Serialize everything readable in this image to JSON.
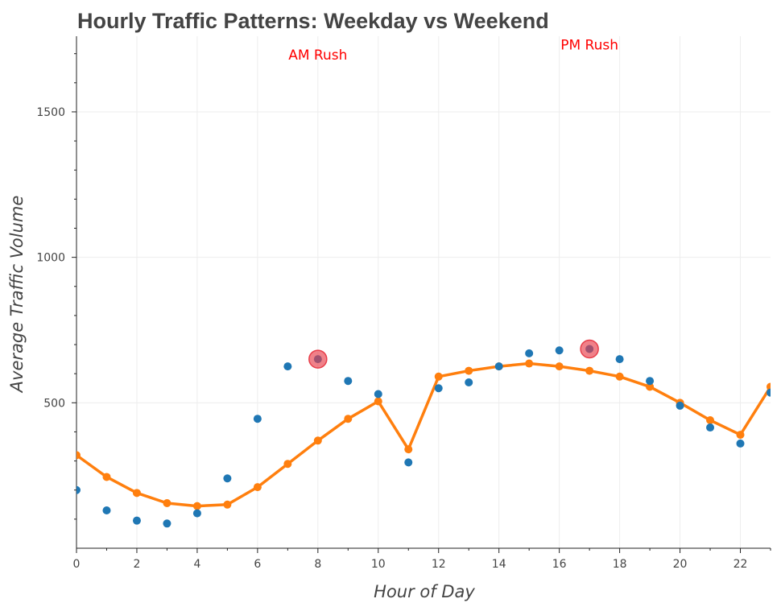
{
  "chart_data": {
    "type": "line",
    "title": "Hourly Traffic Patterns: Weekday vs Weekend",
    "xlabel": "Hour of Day",
    "ylabel": "Average Traffic Volume",
    "xlim": [
      0,
      23
    ],
    "ylim": [
      0,
      1760
    ],
    "x_ticks": [
      0,
      2,
      4,
      6,
      8,
      10,
      12,
      14,
      16,
      18,
      20,
      22
    ],
    "y_ticks": [
      500,
      1000,
      1500
    ],
    "grid": true,
    "legend": "none",
    "x": [
      0,
      1,
      2,
      3,
      4,
      5,
      6,
      7,
      8,
      9,
      10,
      11,
      12,
      13,
      14,
      15,
      16,
      17,
      18,
      19,
      20,
      21,
      22,
      23
    ],
    "series": [
      {
        "kind": "scatter",
        "color": "#1f77b4",
        "values": [
          200,
          130,
          95,
          85,
          120,
          240,
          445,
          625,
          650,
          575,
          530,
          295,
          550,
          570,
          625,
          670,
          680,
          685,
          650,
          575,
          490,
          415,
          360,
          535
        ]
      },
      {
        "kind": "line",
        "color": "#ff7f0e",
        "values": [
          320,
          245,
          190,
          155,
          145,
          150,
          210,
          290,
          370,
          445,
          505,
          340,
          590,
          610,
          625,
          635,
          625,
          610,
          590,
          555,
          500,
          440,
          390,
          555
        ]
      }
    ],
    "highlights": [
      {
        "x": 8,
        "y": 650,
        "color": "#e83e4a"
      },
      {
        "x": 17,
        "y": 685,
        "color": "#e83e4a"
      }
    ],
    "annotations": [
      {
        "text": "AM Rush",
        "x": 8,
        "y": 1680,
        "color": "#ff0000"
      },
      {
        "text": "PM Rush",
        "x": 17,
        "y": 1715,
        "color": "#ff0000"
      }
    ]
  }
}
